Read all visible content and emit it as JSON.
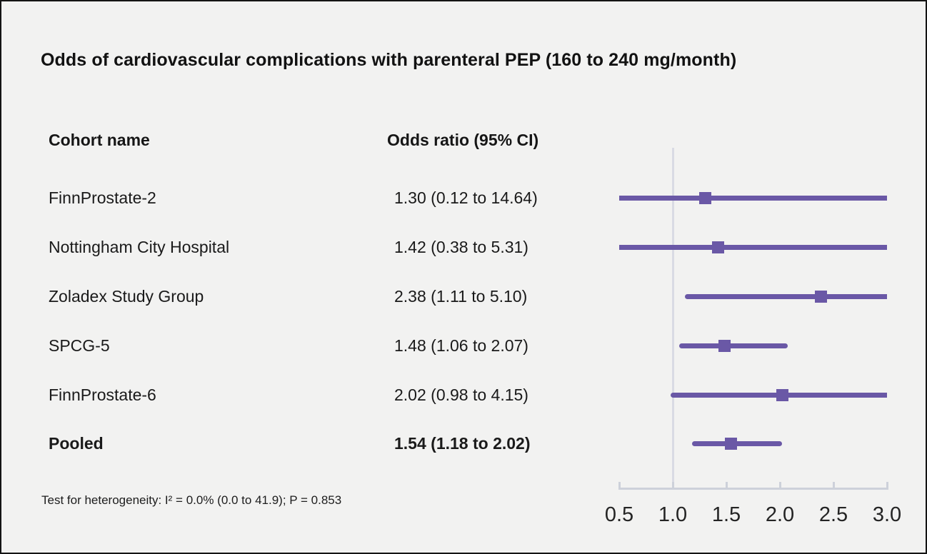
{
  "title": "Odds of cardiovascular complications with parenteral PEP (160 to 240 mg/month)",
  "columns": {
    "cohort_header": "Cohort name",
    "odds_header": "Odds ratio (95% CI)"
  },
  "footnote": "Test for heterogeneity: I² = 0.0% (0.0 to 41.9); P = 0.853",
  "colors": {
    "accent_purple": "#6A58A6",
    "reference_line": "#D9DBE4",
    "axis_line": "#CDD1DA",
    "background": "#F2F2F1",
    "text": "#161616"
  },
  "chart_data": {
    "type": "scatter",
    "subtype": "forest-plot",
    "title": "Odds of cardiovascular complications with parenteral PEP (160 to 240 mg/month)",
    "xlabel": "",
    "ylabel": "",
    "grid": "off",
    "legend": "none",
    "x_axis": {
      "min": 0.5,
      "max": 3.0,
      "ticks": [
        0.5,
        1.0,
        1.5,
        2.0,
        2.5,
        3.0
      ],
      "tick_labels": [
        "0.5",
        "1.0",
        "1.5",
        "2.0",
        "2.5",
        "3.0"
      ],
      "reference_line": 1.0,
      "scale": "linear",
      "note": "confidence intervals extending beyond 0.5 or 3.0 are clipped with flat line ends"
    },
    "rows": [
      {
        "name": "FinnProstate-2",
        "label": "1.30 (0.12 to 14.64)",
        "or": 1.3,
        "ci_low": 0.12,
        "ci_high": 14.64,
        "pooled": false
      },
      {
        "name": "Nottingham City Hospital",
        "label": "1.42 (0.38 to 5.31)",
        "or": 1.42,
        "ci_low": 0.38,
        "ci_high": 5.31,
        "pooled": false
      },
      {
        "name": "Zoladex Study Group",
        "label": "2.38 (1.11 to 5.10)",
        "or": 2.38,
        "ci_low": 1.11,
        "ci_high": 5.1,
        "pooled": false
      },
      {
        "name": "SPCG-5",
        "label": "1.48 (1.06 to 2.07)",
        "or": 1.48,
        "ci_low": 1.06,
        "ci_high": 2.07,
        "pooled": false
      },
      {
        "name": "FinnProstate-6",
        "label": "2.02 (0.98 to 4.15)",
        "or": 2.02,
        "ci_low": 0.98,
        "ci_high": 4.15,
        "pooled": false
      },
      {
        "name": "Pooled",
        "label": "1.54 (1.18 to 2.02)",
        "or": 1.54,
        "ci_low": 1.18,
        "ci_high": 2.02,
        "pooled": true
      }
    ],
    "heterogeneity_note": "Test for heterogeneity: I² = 0.0% (0.0 to 41.9); P = 0.853"
  }
}
